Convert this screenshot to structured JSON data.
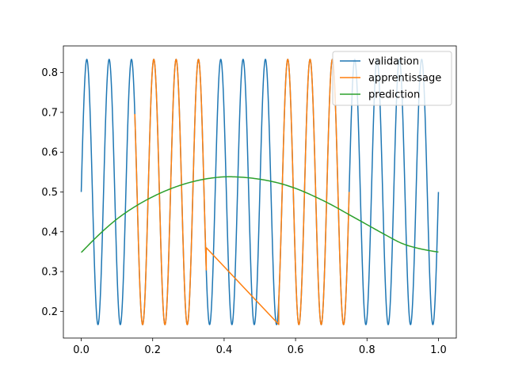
{
  "chart_data": {
    "type": "line",
    "title": "",
    "xlabel": "",
    "ylabel": "",
    "xlim": [
      -0.05,
      1.05
    ],
    "ylim": [
      0.133,
      0.867
    ],
    "xticks": [
      0.0,
      0.2,
      0.4,
      0.6,
      0.8,
      1.0
    ],
    "xtick_labels": [
      "0.0",
      "0.2",
      "0.4",
      "0.6",
      "0.8",
      "1.0"
    ],
    "yticks": [
      0.2,
      0.3,
      0.4,
      0.5,
      0.6,
      0.7,
      0.8
    ],
    "ytick_labels": [
      "0.2",
      "0.3",
      "0.4",
      "0.5",
      "0.6",
      "0.7",
      "0.8"
    ],
    "grid": false,
    "legend_position": "top-right",
    "series": [
      {
        "name": "validation",
        "color": "#1f77b4",
        "function": "0.5 + (1/3) * sin(2*pi*16*x)",
        "x_range": [
          0.0,
          1.0
        ],
        "samples": 1601
      },
      {
        "name": "apprentissage",
        "color": "#ff7f0e",
        "segments": [
          {
            "kind": "sine",
            "function": "0.5 + (1/3) * sin(2*pi*16*x)",
            "x_range": [
              0.15,
              0.35
            ]
          },
          {
            "kind": "linear",
            "points": [
              [
                0.35,
                0.36
              ],
              [
                0.553,
                0.167
              ]
            ]
          },
          {
            "kind": "sine",
            "function": "0.5 + (1/3) * sin(2*pi*16*x)",
            "x_range": [
              0.553,
              0.75
            ]
          }
        ]
      },
      {
        "name": "prediction",
        "color": "#2ca02c",
        "x": [
          0.0,
          0.05,
          0.1,
          0.15,
          0.2,
          0.25,
          0.3,
          0.35,
          0.4,
          0.45,
          0.5,
          0.55,
          0.6,
          0.65,
          0.7,
          0.75,
          0.8,
          0.85,
          0.9,
          0.95,
          1.0
        ],
        "y": [
          0.348,
          0.393,
          0.432,
          0.463,
          0.488,
          0.508,
          0.523,
          0.533,
          0.538,
          0.537,
          0.532,
          0.523,
          0.509,
          0.49,
          0.468,
          0.443,
          0.418,
          0.393,
          0.37,
          0.357,
          0.349
        ]
      }
    ]
  }
}
